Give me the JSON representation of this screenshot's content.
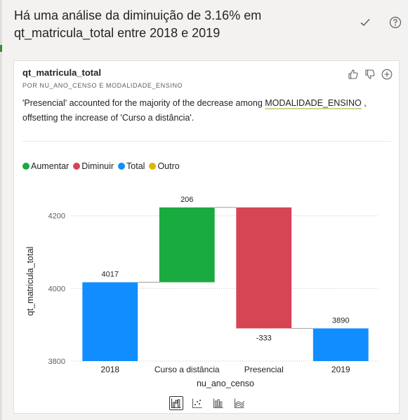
{
  "header": {
    "title": "Há uma análise da diminuição de 3.16% em qt_matricula_total entre 2018 e 2019",
    "accept_icon": "check-icon",
    "help_icon": "help-icon"
  },
  "card": {
    "title": "qt_matricula_total",
    "subtitle": "POR NU_ANO_CENSO E MODALIDADE_ENSINO",
    "summary_prefix": "'Presencial' accounted for the majority of the decrease among ",
    "summary_field": "MODALIDADE_ENSINO",
    "summary_suffix": " , offsetting the increase of 'Curso a distância'.",
    "actions": [
      "thumbs-up-icon",
      "thumbs-down-icon",
      "add-icon"
    ]
  },
  "legend": [
    {
      "label": "Aumentar",
      "color": "#1aab40"
    },
    {
      "label": "Diminuir",
      "color": "#d64554"
    },
    {
      "label": "Total",
      "color": "#118dff"
    },
    {
      "label": "Outro",
      "color": "#e0b400"
    }
  ],
  "chart_data": {
    "type": "bar",
    "subtype": "waterfall",
    "categories": [
      "2018",
      "Curso a distância",
      "Presencial",
      "2019"
    ],
    "values": [
      4017,
      206,
      -333,
      3890
    ],
    "kinds": [
      "total",
      "increase",
      "decrease",
      "total"
    ],
    "data_labels": [
      "4017",
      "206",
      "-333",
      "3890"
    ],
    "xlabel": "nu_ano_censo",
    "ylabel": "qt_matricula_total",
    "yticks": [
      "3800",
      "4000",
      "4200"
    ],
    "ylim": [
      3800,
      4240
    ],
    "colors": {
      "increase": "#1aab40",
      "decrease": "#d64554",
      "total": "#118dff"
    }
  },
  "viz_switch": [
    "waterfall-chart-icon",
    "scatter-chart-icon",
    "column-chart-icon",
    "area-chart-icon"
  ]
}
